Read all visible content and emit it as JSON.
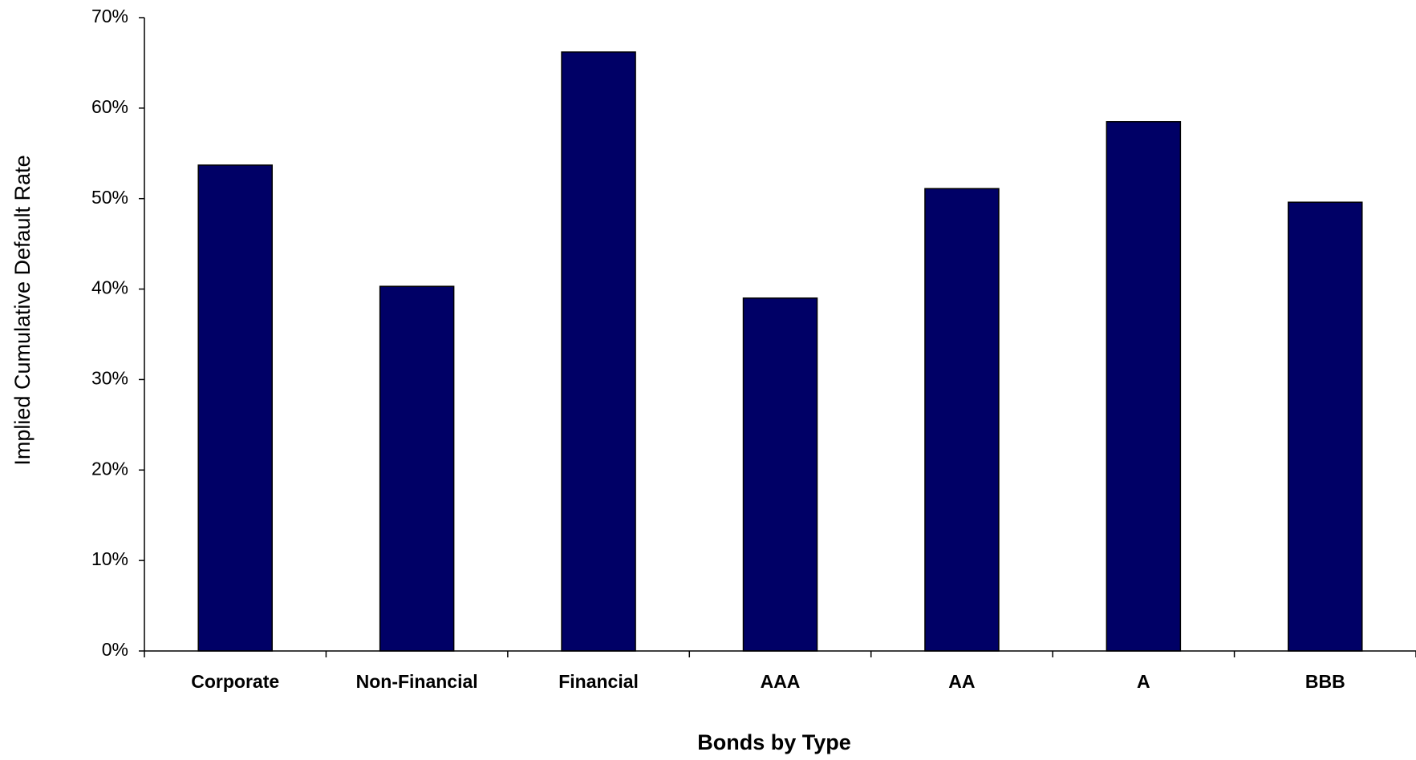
{
  "chart_data": {
    "type": "bar",
    "x_label": "Bonds by Type",
    "y_label": "Implied Cumulative Default Rate",
    "categories": [
      "Corporate",
      "Non-Financial",
      "Financial",
      "AAA",
      "AA",
      "A",
      "BBB"
    ],
    "values": [
      53.7,
      40.3,
      66.2,
      39.0,
      51.1,
      58.5,
      49.6
    ],
    "color": "#000066",
    "ylim": [
      0,
      70
    ],
    "yticks": [
      {
        "value": 0,
        "label": "0%"
      },
      {
        "value": 10,
        "label": "10%"
      },
      {
        "value": 20,
        "label": "20%"
      },
      {
        "value": 30,
        "label": "30%"
      },
      {
        "value": 40,
        "label": "40%"
      },
      {
        "value": 50,
        "label": "50%"
      },
      {
        "value": 60,
        "label": "60%"
      },
      {
        "value": 70,
        "label": "70%"
      }
    ],
    "grid": false
  }
}
